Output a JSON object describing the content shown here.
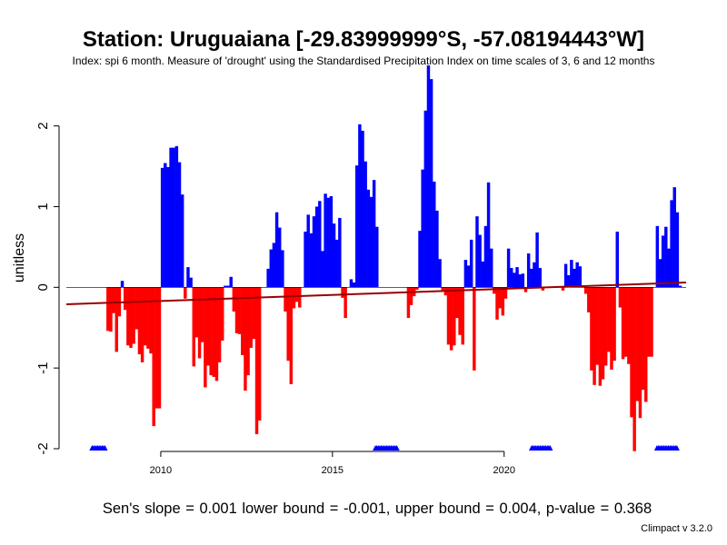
{
  "title": "Station: Uruguaiana [-29.83999999°S, -57.08194443°W]",
  "subtitle": "Index: spi 6 month. Measure of 'drought' using the Standardised Precipitation Index on time scales of 3, 6 and 12 months",
  "stats": "Sen's slope = 0.001   lower bound = -0.001,   upper bound = 0.004,   p-value = 0.368",
  "version": "Climpact v 3.2.0",
  "colors": {
    "positive": "#0000ff",
    "negative": "#ff0000",
    "trend": "#990000",
    "missing": "#0000ff"
  },
  "chart_data": {
    "type": "bar",
    "ylabel": "unitless",
    "xlim": [
      2007.25,
      2025.3
    ],
    "ylim": [
      -2.0,
      2.75
    ],
    "x_ticks": [
      2010,
      2015,
      2020
    ],
    "y_ticks": [
      -2,
      -1,
      0,
      1,
      2
    ],
    "start": [
      2008,
      1
    ],
    "values": [
      null,
      null,
      null,
      null,
      null,
      -0.54,
      -0.55,
      -0.32,
      -0.8,
      -0.36,
      0.08,
      -0.28,
      -0.72,
      -0.75,
      -0.7,
      -0.52,
      -0.83,
      -0.93,
      -0.72,
      -0.76,
      -0.82,
      -1.72,
      -1.5,
      -1.5,
      1.48,
      1.54,
      1.49,
      1.73,
      1.73,
      1.75,
      1.55,
      1.15,
      -0.14,
      0.25,
      0.12,
      -0.98,
      -0.62,
      -0.88,
      -0.68,
      -1.24,
      -0.97,
      -1.09,
      -1.11,
      -1.16,
      -0.93,
      -0.66,
      0.02,
      0.02,
      0.13,
      -0.3,
      -0.57,
      -0.58,
      -0.84,
      -1.28,
      -1.09,
      -0.75,
      -0.64,
      -1.82,
      -1.65,
      0.0,
      0.0,
      0.23,
      0.47,
      0.55,
      0.93,
      0.74,
      0.46,
      -0.3,
      -0.91,
      -1.2,
      -0.26,
      -0.18,
      -0.25,
      0.0,
      0.69,
      0.9,
      0.67,
      0.88,
      1.0,
      1.07,
      0.45,
      1.16,
      1.11,
      1.13,
      0.79,
      0.59,
      0.86,
      -0.13,
      -0.38,
      0.0,
      0.1,
      0.06,
      1.51,
      2.02,
      1.94,
      1.56,
      1.21,
      1.12,
      1.33,
      0.75,
      null,
      null,
      null,
      null,
      null,
      null,
      null,
      null,
      null,
      null,
      -0.38,
      -0.22,
      -0.11,
      -0.03,
      0.7,
      1.46,
      2.19,
      2.75,
      2.58,
      1.31,
      0.95,
      0.35,
      -0.04,
      -0.1,
      -0.71,
      -0.78,
      -0.72,
      -0.38,
      -0.59,
      -0.71,
      0.34,
      0.27,
      0.59,
      -1.03,
      0.88,
      0.65,
      0.32,
      0.76,
      1.3,
      0.48,
      -0.08,
      -0.4,
      -0.26,
      -0.35,
      -0.14,
      0.48,
      0.24,
      0.18,
      0.25,
      0.16,
      0.17,
      -0.06,
      0.42,
      0.23,
      0.31,
      0.68,
      0.24,
      -0.04,
      null,
      null,
      null,
      null,
      null,
      null,
      -0.04,
      0.29,
      0.15,
      0.34,
      0.23,
      0.31,
      0.26,
      null,
      -0.08,
      -0.31,
      -1.03,
      -1.21,
      -0.96,
      -1.22,
      -1.14,
      -0.97,
      -0.8,
      -1.02,
      -0.91,
      0.69,
      -0.25,
      -0.89,
      -0.86,
      -0.95,
      -1.61,
      -2.03,
      -1.41,
      -1.62,
      -1.27,
      -1.42,
      -0.86,
      -0.86,
      0.0,
      0.76,
      0.35,
      0.64,
      0.75,
      0.48,
      1.08,
      1.24,
      0.93,
      0.02
    ],
    "trend": {
      "x": [
        2007.25,
        2025.3
      ],
      "y": [
        -0.21,
        0.06
      ]
    },
    "missing_flags": [
      {
        "from": 2008.0,
        "to": 2008.4
      },
      {
        "from": 2016.25,
        "to": 2016.9
      },
      {
        "from": 2020.8,
        "to": 2021.35
      },
      {
        "from": 2024.45,
        "to": 2025.05
      }
    ]
  }
}
